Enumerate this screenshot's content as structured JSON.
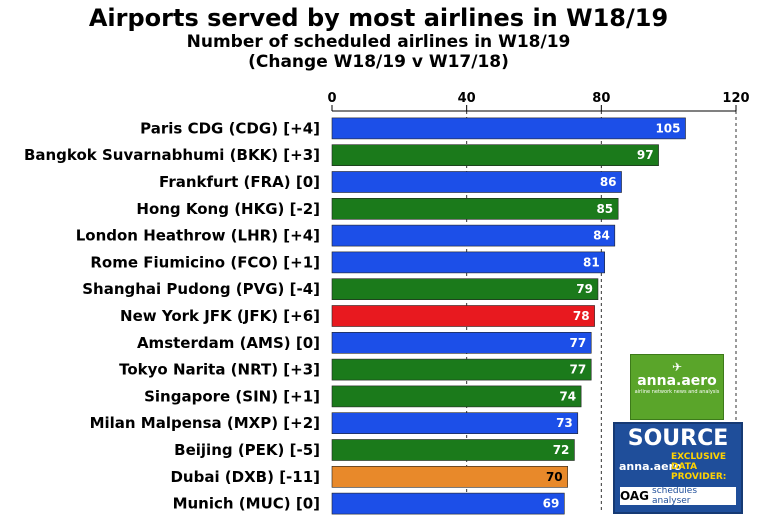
{
  "chart_data": {
    "type": "bar",
    "orientation": "horizontal",
    "title": "Airports served by most airlines in W18/19",
    "subtitle": "Number of scheduled airlines in W18/19",
    "subtitle2": "(Change W18/19 v W17/18)",
    "xlim": [
      0,
      120
    ],
    "x_ticks": [
      0,
      40,
      80,
      120
    ],
    "gridlines": "dashed vertical",
    "categories": [
      "Paris CDG (CDG) [+4]",
      "Bangkok Suvarnabhumi (BKK) [+3]",
      "Frankfurt (FRA) [0]",
      "Hong Kong (HKG) [-2]",
      "London Heathrow (LHR) [+4]",
      "Rome Fiumicino (FCO) [+1]",
      "Shanghai Pudong (PVG) [-4]",
      "New York JFK (JFK) [+6]",
      "Amsterdam (AMS) [0]",
      "Tokyo Narita (NRT) [+3]",
      "Singapore (SIN) [+1]",
      "Milan Malpensa  (MXP) [+2]",
      "Beijing (PEK) [-5]",
      "Dubai (DXB) [-11]",
      "Munich (MUC) [0]"
    ],
    "values": [
      105,
      97,
      86,
      85,
      84,
      81,
      79,
      78,
      77,
      77,
      74,
      73,
      72,
      70,
      69
    ],
    "bar_colors": [
      "#1c4fe8",
      "#1b7a1b",
      "#1c4fe8",
      "#1b7a1b",
      "#1c4fe8",
      "#1c4fe8",
      "#1b7a1b",
      "#e8191f",
      "#1c4fe8",
      "#1b7a1b",
      "#1b7a1b",
      "#1c4fe8",
      "#1b7a1b",
      "#e8892a",
      "#1c4fe8"
    ],
    "value_label_colors": [
      "#ffffff",
      "#ffffff",
      "#ffffff",
      "#ffffff",
      "#ffffff",
      "#ffffff",
      "#ffffff",
      "#ffffff",
      "#ffffff",
      "#ffffff",
      "#ffffff",
      "#ffffff",
      "#ffffff",
      "#000000",
      "#ffffff"
    ]
  },
  "logos": {
    "anna_brand": "anna.aero",
    "anna_tagline": "airline network news and analysis",
    "source_title": "SOURCE",
    "source_brand": "anna.aero",
    "source_exclusive": "EXCLUSIVE DATA PROVIDER:",
    "oag_brand": "OAG",
    "oag_product": "schedules analyser"
  }
}
